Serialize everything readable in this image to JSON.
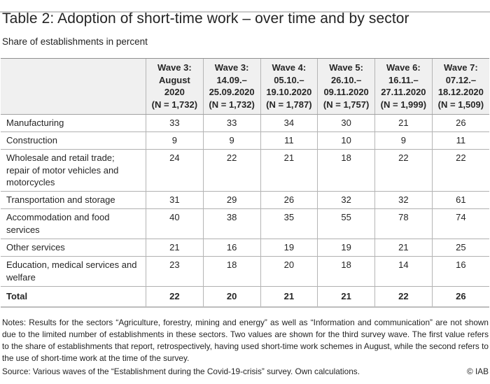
{
  "header": {
    "title": "Table 2: Adoption of short-time work – over time and by sector",
    "subtitle": "Share of establishments in percent"
  },
  "table": {
    "corner": "",
    "columns": [
      {
        "lines": [
          "Wave 3:",
          "August",
          "2020",
          "(N = 1,732)"
        ]
      },
      {
        "lines": [
          "Wave 3:",
          "14.09.–",
          "25.09.2020",
          "(N = 1,732)"
        ]
      },
      {
        "lines": [
          "Wave 4:",
          "05.10.–",
          "19.10.2020",
          "(N = 1,787)"
        ]
      },
      {
        "lines": [
          "Wave 5:",
          "26.10.–",
          "09.11.2020",
          "(N = 1,757)"
        ]
      },
      {
        "lines": [
          "Wave 6:",
          "16.11.–",
          "27.11.2020",
          "(N = 1,999)"
        ]
      },
      {
        "lines": [
          "Wave 7:",
          "07.12.–",
          "18.12.2020",
          "(N = 1,509)"
        ]
      }
    ],
    "rows": [
      {
        "sector": "Manufacturing",
        "values": [
          33,
          33,
          34,
          30,
          21,
          26
        ],
        "bold": false
      },
      {
        "sector": "Construction",
        "values": [
          9,
          9,
          11,
          10,
          9,
          11
        ],
        "bold": false
      },
      {
        "sector": "Wholesale and retail trade; repair of motor vehicles and motorcycles",
        "values": [
          24,
          22,
          21,
          18,
          22,
          22
        ],
        "bold": false
      },
      {
        "sector": "Transportation and storage",
        "values": [
          31,
          29,
          26,
          32,
          32,
          61
        ],
        "bold": false
      },
      {
        "sector": "Accommodation and food services",
        "values": [
          40,
          38,
          35,
          55,
          78,
          74
        ],
        "bold": false
      },
      {
        "sector": "Other services",
        "values": [
          21,
          16,
          19,
          19,
          21,
          25
        ],
        "bold": false
      },
      {
        "sector": "Education, medical services and welfare",
        "values": [
          23,
          18,
          20,
          18,
          14,
          16
        ],
        "bold": false
      },
      {
        "sector": "Total",
        "values": [
          22,
          20,
          21,
          21,
          22,
          26
        ],
        "bold": true
      }
    ]
  },
  "notes": {
    "text": "Notes: Results for the sectors “Agriculture, forestry, mining and energy” as well as “Information and communication” are not shown due to the limited number of establishments in these sectors. Two values are shown for the third survey wave. The first value refers to the share of establishments that report, retrospectively, having used short-time work schemes in August, while the second refers to the use of short-time work at the time of the survey.",
    "source": "Source: Various waves of the “Establishment during the Covid-19-crisis” survey. Own calculations.",
    "copyright": "© IAB"
  },
  "colors": {
    "header_bg": "#f0f0f0",
    "table_border": "#b0b0b0",
    "header_top_border": "#8f8f8f",
    "page_rule": "#c9c9c9",
    "text": "#262626"
  },
  "chart_data": {
    "type": "table",
    "title": "Table 2: Adoption of short-time work – over time and by sector",
    "subtitle": "Share of establishments in percent",
    "columns": [
      "Wave 3: August 2020 (N = 1,732)",
      "Wave 3: 14.09.–25.09.2020 (N = 1,732)",
      "Wave 4: 05.10.–19.10.2020 (N = 1,787)",
      "Wave 5: 26.10.–09.11.2020 (N = 1,757)",
      "Wave 6: 16.11.–27.11.2020 (N = 1,999)",
      "Wave 7: 07.12.–18.12.2020 (N = 1,509)"
    ],
    "rows": [
      {
        "sector": "Manufacturing",
        "values": [
          33,
          33,
          34,
          30,
          21,
          26
        ]
      },
      {
        "sector": "Construction",
        "values": [
          9,
          9,
          11,
          10,
          9,
          11
        ]
      },
      {
        "sector": "Wholesale and retail trade; repair of motor vehicles and motorcycles",
        "values": [
          24,
          22,
          21,
          18,
          22,
          22
        ]
      },
      {
        "sector": "Transportation and storage",
        "values": [
          31,
          29,
          26,
          32,
          32,
          61
        ]
      },
      {
        "sector": "Accommodation and food services",
        "values": [
          40,
          38,
          35,
          55,
          78,
          74
        ]
      },
      {
        "sector": "Other services",
        "values": [
          21,
          16,
          19,
          19,
          21,
          25
        ]
      },
      {
        "sector": "Education, medical services and welfare",
        "values": [
          23,
          18,
          20,
          18,
          14,
          16
        ]
      },
      {
        "sector": "Total",
        "values": [
          22,
          20,
          21,
          21,
          22,
          26
        ]
      }
    ]
  }
}
